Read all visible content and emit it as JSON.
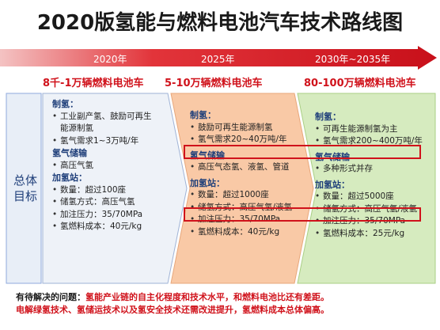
{
  "title": "2020版氢能与燃料电池汽车技术路线图",
  "timeline": {
    "years": [
      "2020年",
      "2025年",
      "2030年~2035年"
    ],
    "targets": [
      "8千-1万辆燃料电池车",
      "5-10万辆燃料电池车",
      "80-100万辆燃料电池车"
    ]
  },
  "row_label": [
    "总体",
    "目标"
  ],
  "columns": [
    {
      "h1": "制氢：",
      "p1": [
        "工业副产氢、鼓励可再生",
        "能源制氢",
        "氢气需求1~3万吨/年"
      ],
      "h2": "氢气储输",
      "p2": [
        "高压气氢"
      ],
      "h3": "加氢站：",
      "p3": [
        "数量：超过100座",
        "储氢方式：高压气氢",
        "加注压力：35/70MPa",
        "氢燃料成本：40元/kg"
      ]
    },
    {
      "h1": "制氢：",
      "p1": [
        "鼓励可再生能源制氢",
        "氢气需求20~40万吨/年"
      ],
      "h2": "氢气储输",
      "p2": [
        "高压气态氢、液氢、管道"
      ],
      "h3": "加氢站：",
      "p3": [
        "数量：超过1000座",
        "储氢方式：高压气氢/液氢",
        "加注压力：35/70MPa",
        "氢燃料成本：40元/kg"
      ]
    },
    {
      "h1": "制氢：",
      "p1": [
        "可再生能源制氢为主",
        "氢气需求200~400万吨/年"
      ],
      "h2": "氢气储输",
      "p2": [
        "多种形式并存"
      ],
      "h3": "加氢站：",
      "p3": [
        "数量：超过5000座",
        "储氢方式：高压气氢/液氢",
        "加注压力：35/70MPa",
        "氢燃料成本：25元/kg"
      ]
    }
  ],
  "bottom": {
    "label": "有待解决的问题：",
    "line1": "氢能产业链的自主化程度和技术水平，和燃料电池比还有差距。",
    "line2": "电解绿氢技术、氢储运技术以及氢安全技术还需改进提升，氢燃料成本总体偏高。"
  },
  "colors": {
    "accent_red": "#d0121b",
    "col1_fill": "#e8eef7",
    "col2_fill": "#f9c9a6",
    "col3_fill": "#d6ebbf",
    "label_blue": "#1f3f7a"
  }
}
